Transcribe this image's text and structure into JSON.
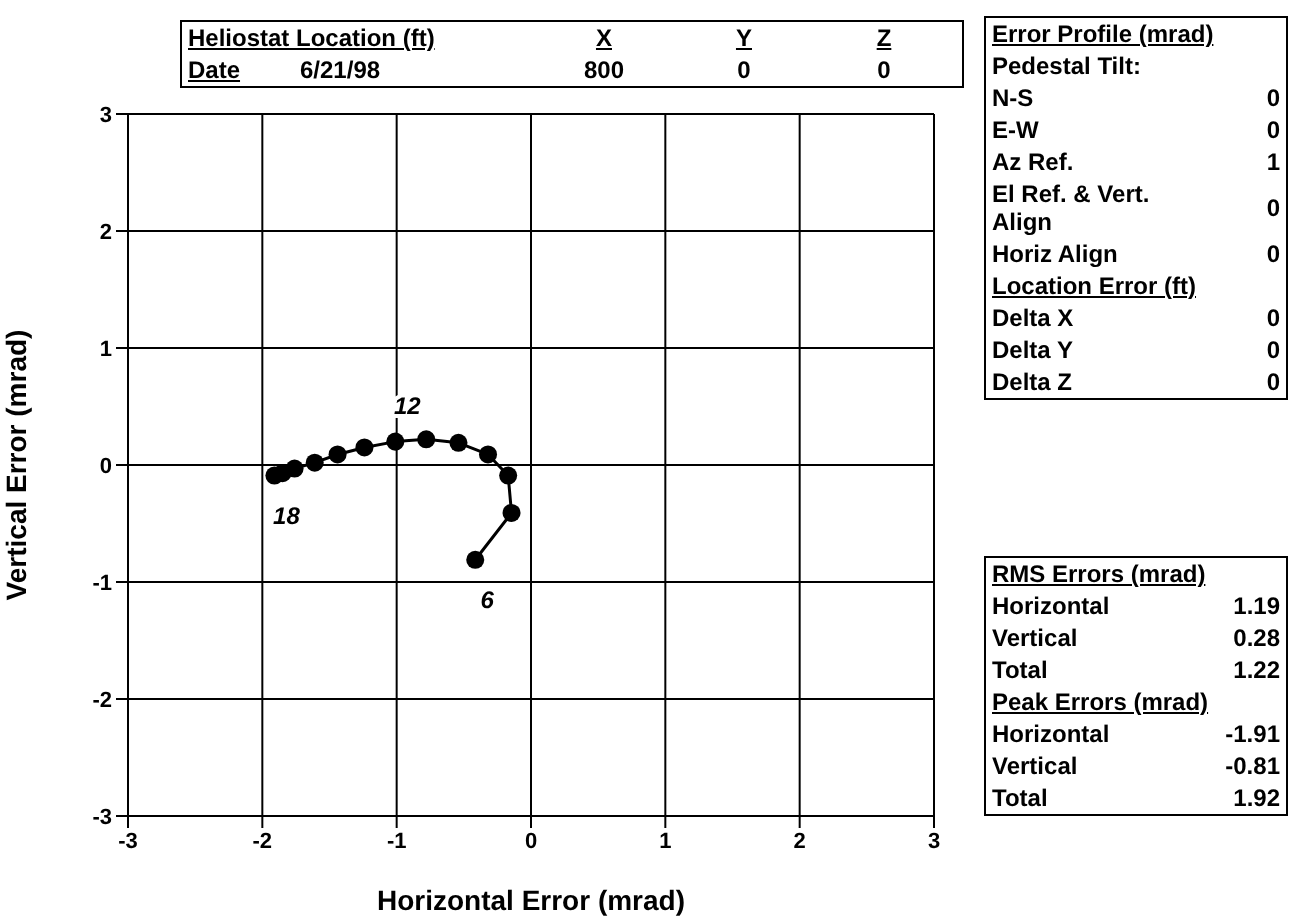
{
  "chart_data": {
    "type": "line",
    "xlabel": "Horizontal Error (mrad)",
    "ylabel": "Vertical Error (mrad)",
    "x": [
      -0.415,
      -0.145,
      -0.17,
      -0.32,
      -0.54,
      -0.78,
      -1.01,
      -1.24,
      -1.44,
      -1.61,
      -1.76,
      -1.85,
      -1.91
    ],
    "series": [
      {
        "color": "#000000",
        "values": [
          -0.81,
          -0.41,
          -0.09,
          0.09,
          0.19,
          0.22,
          0.2,
          0.15,
          0.09,
          0.02,
          -0.03,
          -0.07,
          -0.09
        ]
      }
    ],
    "xlim": [
      -3,
      3
    ],
    "xticks": [
      -3,
      -2,
      -1,
      0,
      1,
      2,
      3
    ],
    "ylim": [
      -3,
      3
    ],
    "yticks": [
      -3,
      -2,
      -1,
      0,
      1,
      2,
      3
    ],
    "grid": true,
    "marker": "circle",
    "line_style": "solid",
    "annotations": [
      {
        "text": "6",
        "x": -0.415,
        "y": -0.81
      },
      {
        "text": "12",
        "x": -1.01,
        "y": 0.2
      },
      {
        "text": "18",
        "x": -1.91,
        "y": -0.09
      },
      "Heliostat Location (ft)",
      "X",
      "Y",
      "Z",
      "Date",
      "6/21/98",
      "800",
      "0",
      "0",
      "Error Profile (mrad)",
      "Pedestal Tilt:",
      "N-S",
      "0",
      "E-W",
      "0",
      "Az Ref.",
      "1",
      "El Ref. & Vert. Align",
      "0",
      "Horiz Align",
      "0",
      "Location Error (ft)",
      "Delta X",
      "0",
      "Delta Y",
      "0",
      "Delta Z",
      "0",
      "RMS Errors (mrad)",
      "Horizontal",
      "1.19",
      "Vertical",
      "0.28",
      "Total",
      "1.22",
      "Peak Errors (mrad)",
      "Horizontal",
      "-1.91",
      "Vertical",
      "-0.81",
      "Total",
      "1.92"
    ]
  }
}
